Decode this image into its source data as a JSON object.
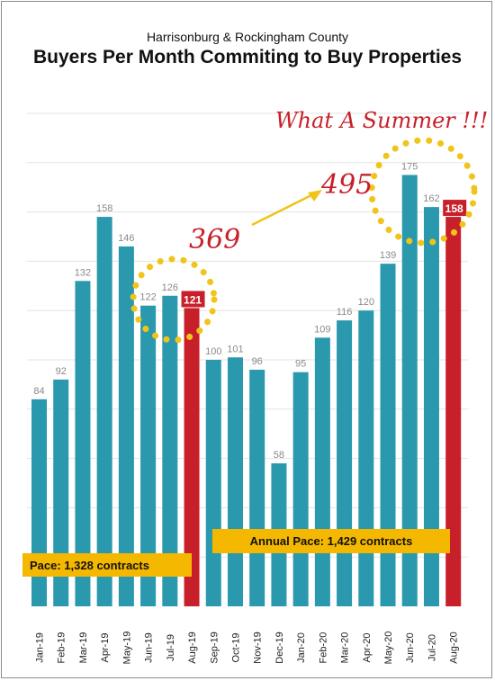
{
  "subtitle": "Harrisonburg & Rockingham County",
  "title": "Buyers Per Month Commiting to Buy Properties",
  "annotations": {
    "headline": "What A Summer !!!",
    "before": "369",
    "after": "495",
    "pace_2019": "Pace: 1,328 contracts",
    "pace_2020": "Annual Pace: 1,429 contracts"
  },
  "colors": {
    "bar": "#2a98ad",
    "highlight": "#c8202a",
    "pace_box": "#f5b800",
    "dots": "#f0c419",
    "arrow": "#f0c419",
    "grid": "#e3e3e3"
  },
  "chart_data": {
    "type": "bar",
    "categories": [
      "Jan-19",
      "Feb-19",
      "Mar-19",
      "Apr-19",
      "May-19",
      "Jun-19",
      "Jul-19",
      "Aug-19",
      "Sep-19",
      "Oct-19",
      "Nov-19",
      "Dec-19",
      "Jan-20",
      "Feb-20",
      "Mar-20",
      "Apr-20",
      "May-20",
      "Jun-20",
      "Jul-20",
      "Aug-20"
    ],
    "values": [
      84,
      92,
      132,
      158,
      146,
      122,
      126,
      121,
      100,
      101,
      96,
      58,
      95,
      109,
      116,
      120,
      139,
      175,
      162,
      158
    ],
    "highlighted": [
      "Aug-19",
      "Aug-20"
    ],
    "ylim": [
      0,
      200
    ],
    "grid": true,
    "legend": "none"
  }
}
